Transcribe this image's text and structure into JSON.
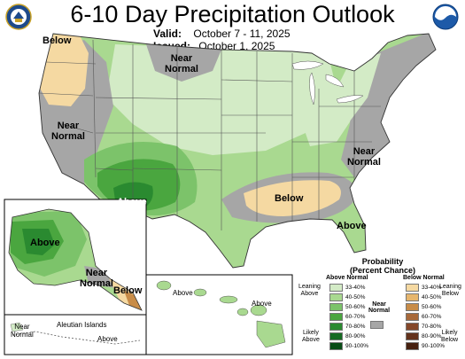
{
  "title": "6-10 Day Precipitation Outlook",
  "valid_label": "Valid:",
  "valid_dates": "October 7 - 11, 2025",
  "issued_label": "Issued:",
  "issued_date": "October 1, 2025",
  "logos": {
    "left": "doc-seal-logo",
    "right": "noaa-logo"
  },
  "map_labels": {
    "nw_below": "Below",
    "central_near": "Near\nNormal",
    "west_near": "Near\nNormal",
    "sw_above": "Above",
    "se_below": "Below",
    "east_near": "Near\nNormal",
    "fl_above": "Above",
    "ak_above": "Above",
    "ak_near": "Near\nNormal",
    "ak_below": "Below",
    "ak_near2": "Near\nNormal",
    "aleutian": "Aleutian Islands",
    "ak_above2": "Above",
    "hi_above1": "Above",
    "hi_above2": "Above"
  },
  "legend": {
    "title": "Probability\n(Percent Chance)",
    "above_header": "Above Normal",
    "below_header": "Below Normal",
    "near_header": "Near\nNormal",
    "leaning_above": "Leaning\nAbove",
    "likely_above": "Likely\nAbove",
    "leaning_below": "Leaning\nBelow",
    "likely_below": "Likely\nBelow",
    "ranges": [
      "33-40%",
      "40-50%",
      "50-60%",
      "60-70%",
      "70-80%",
      "80-90%",
      "90-100%"
    ],
    "above_colors": [
      "#d3ebc6",
      "#a9d990",
      "#7cc36a",
      "#4aa63f",
      "#2a8a30",
      "#156b22",
      "#084c15"
    ],
    "below_colors": [
      "#f5d9a2",
      "#e6b66e",
      "#c88c48",
      "#a8693a",
      "#85482a",
      "#63321c",
      "#46200f"
    ],
    "near_color": "#a6a6a6"
  }
}
